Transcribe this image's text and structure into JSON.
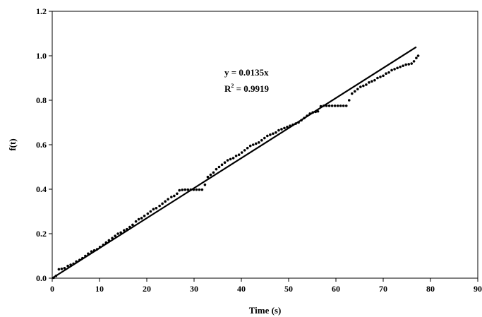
{
  "chart_data": {
    "type": "scatter",
    "title": "",
    "xlabel": "Time (s)",
    "ylabel": "f(t)",
    "xlim": [
      0,
      90
    ],
    "ylim": [
      0,
      1.2
    ],
    "x_ticks": [
      0,
      10,
      20,
      30,
      40,
      50,
      60,
      70,
      80,
      90
    ],
    "y_ticks": [
      0.0,
      0.2,
      0.4,
      0.6,
      0.8,
      1.0,
      1.2
    ],
    "x_tick_labels": [
      "0",
      "10",
      "20",
      "30",
      "40",
      "50",
      "60",
      "70",
      "80",
      "90"
    ],
    "y_tick_labels": [
      "0.0",
      "0.2",
      "0.4",
      "0.6",
      "0.8",
      "1.0",
      "1.2"
    ],
    "grid": false,
    "legend": "none",
    "annotation": {
      "equation": "y = 0.0135x",
      "r2_prefix": "R",
      "r2_sup": "2",
      "r2_suffix": " = 0.9919"
    },
    "fit_line": {
      "slope": 0.0135,
      "intercept": 0,
      "x_range": [
        0,
        77
      ]
    },
    "series": [
      {
        "marker_color": "#000000",
        "points": [
          [
            0.3,
            0.002
          ],
          [
            0.8,
            0.01
          ],
          [
            1.4,
            0.04
          ],
          [
            2.0,
            0.042
          ],
          [
            2.6,
            0.045
          ],
          [
            3.3,
            0.055
          ],
          [
            3.9,
            0.06
          ],
          [
            4.5,
            0.065
          ],
          [
            5.1,
            0.075
          ],
          [
            5.8,
            0.082
          ],
          [
            6.4,
            0.09
          ],
          [
            7.0,
            0.1
          ],
          [
            7.6,
            0.11
          ],
          [
            8.3,
            0.12
          ],
          [
            8.9,
            0.125
          ],
          [
            9.5,
            0.13
          ],
          [
            10.1,
            0.14
          ],
          [
            10.8,
            0.15
          ],
          [
            11.4,
            0.16
          ],
          [
            12.0,
            0.17
          ],
          [
            12.7,
            0.18
          ],
          [
            13.3,
            0.19
          ],
          [
            13.9,
            0.2
          ],
          [
            14.5,
            0.205
          ],
          [
            15.2,
            0.215
          ],
          [
            15.8,
            0.22
          ],
          [
            16.4,
            0.23
          ],
          [
            17.0,
            0.24
          ],
          [
            17.7,
            0.255
          ],
          [
            18.3,
            0.265
          ],
          [
            18.9,
            0.27
          ],
          [
            19.5,
            0.28
          ],
          [
            20.2,
            0.29
          ],
          [
            20.8,
            0.3
          ],
          [
            21.4,
            0.31
          ],
          [
            22.0,
            0.315
          ],
          [
            22.7,
            0.325
          ],
          [
            23.3,
            0.335
          ],
          [
            23.9,
            0.345
          ],
          [
            24.5,
            0.355
          ],
          [
            25.2,
            0.365
          ],
          [
            25.8,
            0.37
          ],
          [
            26.4,
            0.38
          ],
          [
            26.9,
            0.395
          ],
          [
            27.5,
            0.397
          ],
          [
            28.1,
            0.398
          ],
          [
            28.7,
            0.398
          ],
          [
            29.3,
            0.398
          ],
          [
            29.9,
            0.398
          ],
          [
            30.5,
            0.398
          ],
          [
            31.1,
            0.398
          ],
          [
            31.7,
            0.398
          ],
          [
            32.3,
            0.42
          ],
          [
            32.9,
            0.455
          ],
          [
            33.5,
            0.465
          ],
          [
            34.1,
            0.475
          ],
          [
            34.7,
            0.49
          ],
          [
            35.3,
            0.5
          ],
          [
            35.9,
            0.51
          ],
          [
            36.5,
            0.52
          ],
          [
            37.1,
            0.53
          ],
          [
            37.7,
            0.535
          ],
          [
            38.3,
            0.54
          ],
          [
            38.9,
            0.55
          ],
          [
            39.5,
            0.555
          ],
          [
            40.1,
            0.565
          ],
          [
            40.7,
            0.575
          ],
          [
            41.3,
            0.585
          ],
          [
            41.9,
            0.595
          ],
          [
            42.5,
            0.6
          ],
          [
            43.1,
            0.605
          ],
          [
            43.7,
            0.61
          ],
          [
            44.3,
            0.62
          ],
          [
            44.9,
            0.63
          ],
          [
            45.5,
            0.64
          ],
          [
            46.1,
            0.645
          ],
          [
            46.7,
            0.65
          ],
          [
            47.3,
            0.655
          ],
          [
            47.9,
            0.665
          ],
          [
            48.5,
            0.67
          ],
          [
            49.1,
            0.675
          ],
          [
            49.7,
            0.68
          ],
          [
            50.3,
            0.685
          ],
          [
            50.9,
            0.69
          ],
          [
            51.5,
            0.695
          ],
          [
            52.1,
            0.7
          ],
          [
            52.7,
            0.71
          ],
          [
            53.3,
            0.72
          ],
          [
            53.9,
            0.73
          ],
          [
            54.5,
            0.74
          ],
          [
            55.1,
            0.745
          ],
          [
            55.7,
            0.748
          ],
          [
            56.2,
            0.75
          ],
          [
            56.8,
            0.773
          ],
          [
            57.4,
            0.775
          ],
          [
            58.0,
            0.775
          ],
          [
            58.6,
            0.775
          ],
          [
            59.2,
            0.775
          ],
          [
            59.8,
            0.775
          ],
          [
            60.4,
            0.775
          ],
          [
            61.0,
            0.775
          ],
          [
            61.6,
            0.775
          ],
          [
            62.2,
            0.775
          ],
          [
            62.8,
            0.8
          ],
          [
            63.4,
            0.83
          ],
          [
            64.0,
            0.84
          ],
          [
            64.6,
            0.85
          ],
          [
            65.2,
            0.86
          ],
          [
            65.8,
            0.865
          ],
          [
            66.4,
            0.87
          ],
          [
            67.0,
            0.88
          ],
          [
            67.6,
            0.885
          ],
          [
            68.2,
            0.89
          ],
          [
            68.8,
            0.9
          ],
          [
            69.4,
            0.905
          ],
          [
            70.0,
            0.91
          ],
          [
            70.6,
            0.92
          ],
          [
            71.2,
            0.925
          ],
          [
            71.8,
            0.935
          ],
          [
            72.4,
            0.94
          ],
          [
            73.0,
            0.945
          ],
          [
            73.6,
            0.95
          ],
          [
            74.2,
            0.955
          ],
          [
            74.8,
            0.96
          ],
          [
            75.4,
            0.962
          ],
          [
            76.0,
            0.965
          ],
          [
            76.5,
            0.975
          ],
          [
            77.0,
            0.99
          ],
          [
            77.4,
            1.0
          ]
        ]
      }
    ]
  }
}
